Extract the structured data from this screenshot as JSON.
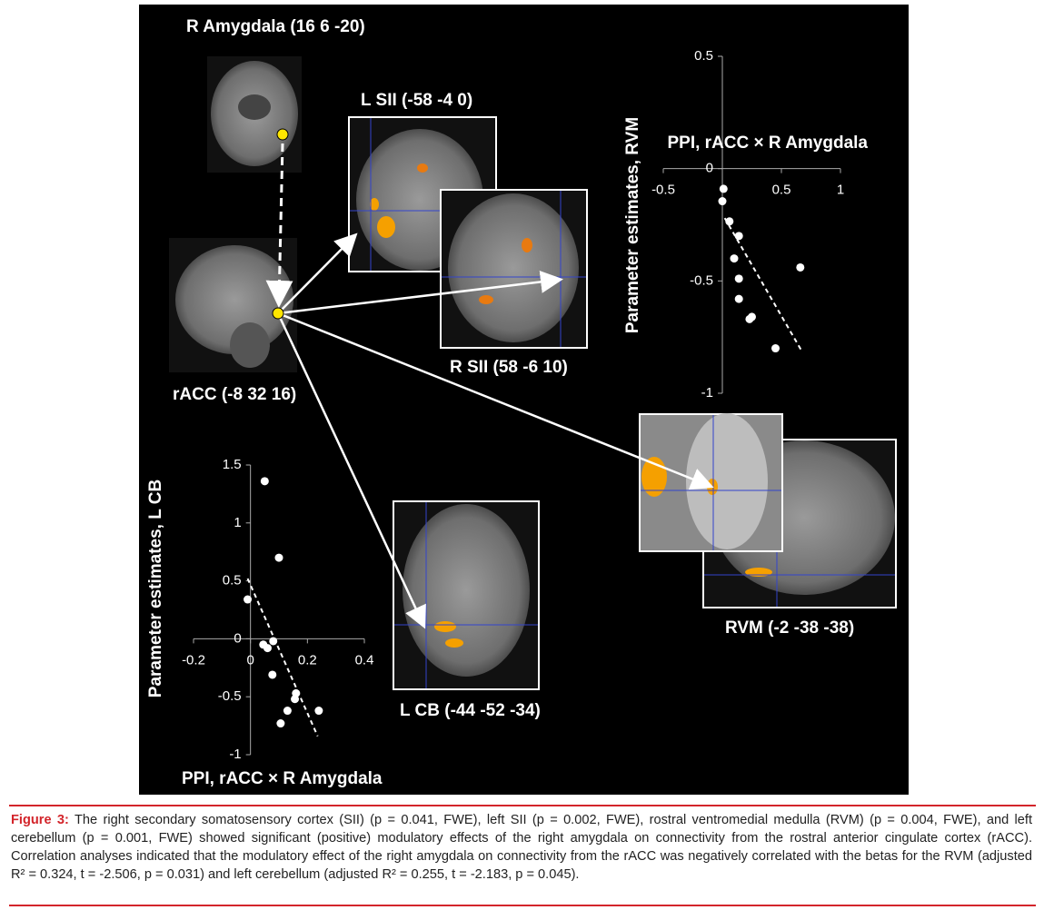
{
  "figure": {
    "labels": {
      "amygdala": "R Amygdala (16 6 -20)",
      "lsii": "L SII  (-58 -4 0)",
      "rsii": "R SII (58 -6 10)",
      "racc": "rACC (-8 32 16)",
      "lcb": "L CB (-44  -52  -34)",
      "rvm": "RVM (-2  -38  -38)"
    }
  },
  "chart_data": [
    {
      "type": "scatter",
      "color": "#ffffff",
      "x_label": "PPI, rACC × R Amygdala",
      "y_label": "Parameter estimates,  RVM",
      "x": [
        0.01,
        0.0,
        0.06,
        0.14,
        0.1,
        0.14,
        0.14,
        0.25,
        0.23,
        0.66,
        0.45
      ],
      "values": [
        -0.09,
        -0.145,
        -0.235,
        -0.3,
        -0.4,
        -0.49,
        -0.58,
        -0.66,
        -0.67,
        -0.44,
        -0.8
      ],
      "xlim": [
        -0.5,
        1
      ],
      "ylim": [
        -1,
        0.5
      ],
      "xticks": [
        -0.5,
        0.5,
        1
      ],
      "yticks": [
        0.5,
        0,
        -0.5,
        -1
      ],
      "trendline": {
        "x": [
          0.02,
          0.67
        ],
        "y": [
          -0.22,
          -0.81
        ]
      }
    },
    {
      "type": "scatter",
      "color": "#ffffff",
      "x_label": "PPI, rACC × R Amygdala",
      "y_label": "Parameter estimates,  L CB",
      "x": [
        0.05,
        0.1,
        -0.01,
        0.045,
        0.06,
        0.08,
        0.077,
        0.16,
        0.156,
        0.13,
        0.24,
        0.106
      ],
      "values": [
        1.36,
        0.7,
        0.34,
        -0.05,
        -0.08,
        -0.02,
        -0.31,
        -0.47,
        -0.52,
        -0.62,
        -0.62,
        -0.73
      ],
      "xlim": [
        -0.2,
        0.4
      ],
      "ylim": [
        -1,
        1.5
      ],
      "xticks": [
        -0.2,
        0,
        0.2,
        0.4
      ],
      "yticks": [
        1.5,
        1,
        0.5,
        0,
        -0.5,
        -1
      ],
      "trendline": {
        "x": [
          -0.01,
          0.236
        ],
        "y": [
          0.52,
          -0.84
        ]
      }
    }
  ],
  "caption": {
    "label": "Figure 3:",
    "text": "The right secondary somatosensory cortex (SII) (p = 0.041, FWE), left SII (p = 0.002, FWE), rostral ventromedial medulla (RVM) (p = 0.004, FWE), and left cerebellum (p = 0.001, FWE) showed significant (positive) modulatory effects of the right amygdala on connectivity from the rostral anterior cingulate cortex (rACC). Correlation analyses indicated that the modulatory effect of the right amygdala on connectivity from the rACC was negatively correlated with the betas for the RVM (adjusted R² = 0.324, t = -2.506, p = 0.031) and left cerebellum (adjusted R² = 0.255, t = -2.183, p = 0.045)."
  }
}
